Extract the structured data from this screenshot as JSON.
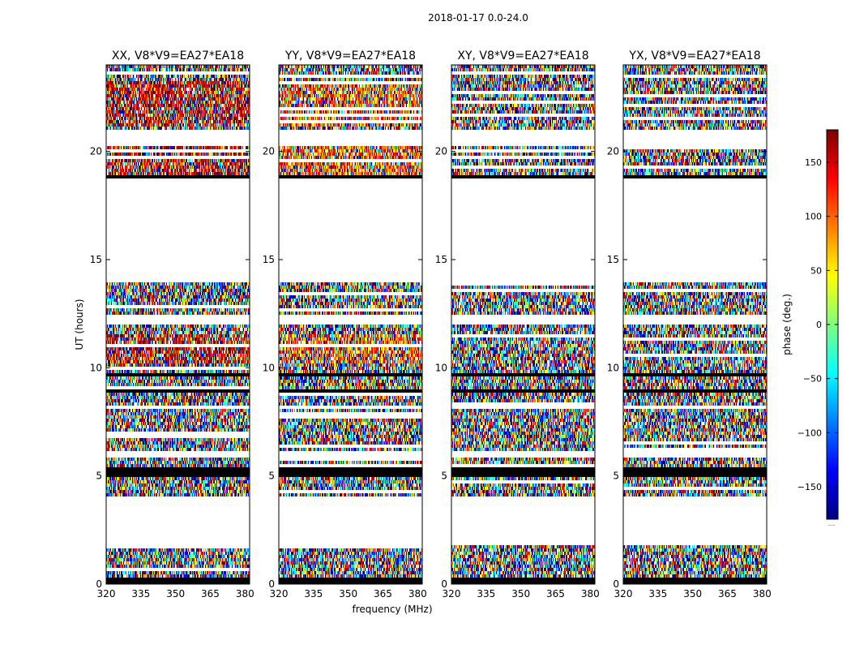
{
  "suptitle": "2018-01-17 0.0-24.0",
  "colorbar_caption": ".....",
  "colors": {
    "colormap": [
      "#00007f",
      "#0000ff",
      "#007fff",
      "#00ffff",
      "#7fff7f",
      "#ffff00",
      "#ff7f00",
      "#ff0000",
      "#7f0000"
    ],
    "flagged": "#000000",
    "frame": "#000000",
    "background": "#ffffff"
  },
  "chart_data": {
    "type": "heatmap",
    "title": "2018-01-17 0.0-24.0",
    "xlabel": "frequency (MHz)",
    "ylabel": "UT (hours)",
    "xlim": [
      320,
      382
    ],
    "ylim": [
      0,
      24
    ],
    "xticks": [
      320,
      335,
      350,
      365,
      380
    ],
    "yticks": [
      0,
      5,
      10,
      15,
      20
    ],
    "panels": [
      {
        "title": "XX, V8*V9=EA27*EA18",
        "pol": "XX",
        "baseline": "V8*V9=EA27*EA18"
      },
      {
        "title": "YY, V8*V9=EA27*EA18",
        "pol": "YY",
        "baseline": "V8*V9=EA27*EA18"
      },
      {
        "title": "XY, V8*V9=EA27*EA18",
        "pol": "XY",
        "baseline": "V8*V9=EA27*EA18"
      },
      {
        "title": "YX, V8*V9=EA27*EA18",
        "pol": "YX",
        "baseline": "V8*V9=EA27*EA18"
      }
    ],
    "data_ut_ranges_hours": [
      [
        0.0,
        1.8
      ],
      [
        4.0,
        5.9
      ],
      [
        6.1,
        8.1
      ],
      [
        8.3,
        10.6
      ],
      [
        10.7,
        12.0
      ],
      [
        12.5,
        14.0
      ],
      [
        18.8,
        20.3
      ],
      [
        21.0,
        24.0
      ]
    ],
    "flagged_ut_bands_hours": [
      [
        0.0,
        0.1
      ],
      [
        0.18,
        0.3
      ],
      [
        0.38,
        0.48
      ],
      [
        4.95,
        5.35
      ],
      [
        8.9,
        9.05
      ],
      [
        9.6,
        9.7
      ],
      [
        10.45,
        10.55
      ],
      [
        11.25,
        11.32
      ],
      [
        18.75,
        18.85
      ],
      [
        19.35,
        19.42
      ],
      [
        22.6,
        22.7
      ]
    ],
    "colorbar": {
      "label": "phase (deg.)",
      "range": [
        -180,
        180
      ],
      "ticks": [
        -150,
        -100,
        -50,
        0,
        50,
        100,
        150
      ],
      "tick_labels": [
        "−150",
        "−100",
        "−50",
        "0",
        "50",
        "100",
        "150"
      ]
    }
  }
}
